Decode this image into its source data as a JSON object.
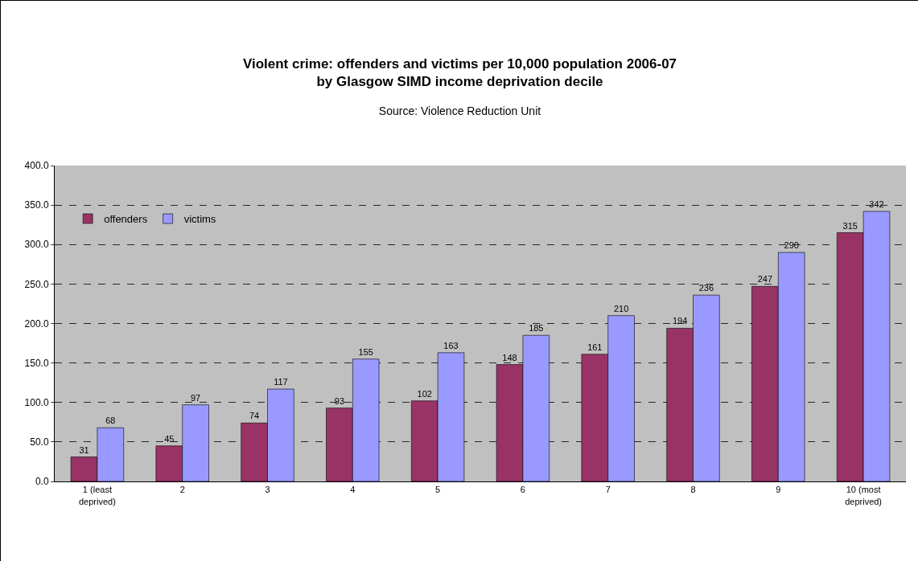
{
  "chart_data": {
    "type": "bar",
    "title": "Violent crime: offenders and victims per 10,000 population 2006-07\nby Glasgow SIMD income deprivation decile",
    "subtitle": "Source: Violence Reduction Unit",
    "categories": [
      "1 (least\ndeprived)",
      "2",
      "3",
      "4",
      "5",
      "6",
      "7",
      "8",
      "9",
      "10 (most\ndeprived)"
    ],
    "series": [
      {
        "name": "offenders",
        "color": "#993366",
        "values": [
          31,
          45,
          74,
          93,
          102,
          148,
          161,
          194,
          247,
          315
        ]
      },
      {
        "name": "victims",
        "color": "#9999ff",
        "values": [
          68,
          97,
          117,
          155,
          163,
          185,
          210,
          236,
          290,
          342
        ]
      }
    ],
    "ylim": [
      0,
      400
    ],
    "yticks": [
      {
        "value": 0,
        "label": "0.0"
      },
      {
        "value": 50,
        "label": "50.0"
      },
      {
        "value": 100,
        "label": "100.0"
      },
      {
        "value": 150,
        "label": "150.0"
      },
      {
        "value": 200,
        "label": "200.0"
      },
      {
        "value": 250,
        "label": "250.0"
      },
      {
        "value": 300,
        "label": "300.0"
      },
      {
        "value": 350,
        "label": "350.0"
      },
      {
        "value": 400,
        "label": "400.0"
      }
    ],
    "grid": "y",
    "legend": "top left",
    "data_labels": true
  }
}
